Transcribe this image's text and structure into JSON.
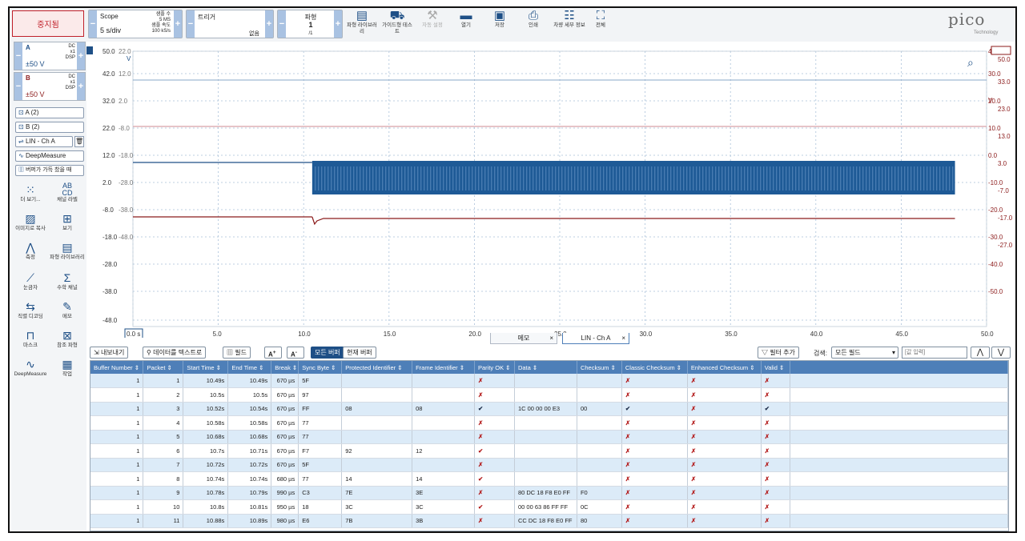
{
  "toolbar": {
    "stop": "중지됨",
    "scope_label": "Scope",
    "timebase": "5 s/div",
    "samples_label": "샘플 수",
    "samples": "5 MS",
    "rate_label": "샘플 속도",
    "rate": "100 kS/s",
    "trigger_label": "트리거",
    "trigger_value": "없음",
    "wave_label": "파형",
    "wave_num": "1",
    "wave_den": "/1",
    "icons": [
      {
        "label": "파형 라이브러리",
        "icon": "books-icon"
      },
      {
        "label": "가이드형 테스트",
        "icon": "car-icon"
      },
      {
        "label": "자동 설정",
        "icon": "wand-icon",
        "disabled": true
      },
      {
        "label": "열기",
        "icon": "folder-icon"
      },
      {
        "label": "저장",
        "icon": "save-icon"
      },
      {
        "label": "인쇄",
        "icon": "printer-icon"
      },
      {
        "label": "차량 세부 정보",
        "icon": "clipboard-icon"
      },
      {
        "label": "전체",
        "icon": "fullscreen-icon"
      }
    ],
    "logo": "pico",
    "logo_sub": "Technology"
  },
  "channels": [
    {
      "name": "A",
      "range": "±50 V",
      "coupling": "DC",
      "probe": "x1",
      "dsp": "DSP",
      "color": "#1e4f86"
    },
    {
      "name": "B",
      "range": "±50 V",
      "coupling": "DC",
      "probe": "x1",
      "dsp": "DSP",
      "color": "#8b1a1a"
    }
  ],
  "side_buttons": [
    "A (2)",
    "B (2)",
    "LIN - Ch A",
    "DeepMeasure",
    "버퍼가 가득 찼을 때"
  ],
  "tools": [
    {
      "label": "더 보기...",
      "icon": "dots-icon"
    },
    {
      "label": "채널 라벨",
      "icon": "abcd-icon"
    },
    {
      "label": "이미지로 복사",
      "icon": "image-icon"
    },
    {
      "label": "보기",
      "icon": "grid-icon"
    },
    {
      "label": "측정",
      "icon": "caliper-icon"
    },
    {
      "label": "파형 라이브러리",
      "icon": "books-icon"
    },
    {
      "label": "눈금자",
      "icon": "ruler-icon"
    },
    {
      "label": "수학 채널",
      "icon": "sigma-icon"
    },
    {
      "label": "직렬 디코딩",
      "icon": "serial-icon"
    },
    {
      "label": "메모",
      "icon": "note-icon"
    },
    {
      "label": "마스크",
      "icon": "mask-icon"
    },
    {
      "label": "참조 파형",
      "icon": "reference-icon"
    },
    {
      "label": "DeepMeasure",
      "icon": "deepmeasure-icon"
    },
    {
      "label": "작업",
      "icon": "clapper-icon"
    }
  ],
  "plot": {
    "y_left_a": [
      "50.0",
      "42.0",
      "32.0",
      "22.0",
      "12.0",
      "2.0",
      "-8.0",
      "-18.0",
      "-28.0",
      "-38.0",
      "-48.0"
    ],
    "y_left_b": [
      "22.0",
      "12.0",
      "2.0",
      "-8.0",
      "-18.0",
      "-28.0",
      "-38.0",
      "-48.0"
    ],
    "y_right_a": [
      "40.0",
      "30.0",
      "20.0",
      "10.0",
      "0.0",
      "-10.0",
      "-20.0",
      "-30.0",
      "-40.0",
      "-50.0"
    ],
    "y_right_b": [
      "50.0",
      "33.0",
      "23.0",
      "13.0",
      "3.0",
      "-7.0",
      "-17.0",
      "-27.0"
    ],
    "unit": "V",
    "x_ticks": [
      "0.0 s",
      "5.0",
      "10.0",
      "15.0",
      "20.0",
      "25.0",
      "30.0",
      "35.0",
      "40.0",
      "45.0",
      "50.0"
    ]
  },
  "tabs": [
    "메모",
    "LIN - Ch A"
  ],
  "buffer_bar": {
    "export": "내보내기",
    "to_text": "데이터를 텍스트로",
    "fields": "필드",
    "all_buffers": "모든 버퍼",
    "current_buffer": "현재 버퍼",
    "add_filter": "필터 추가",
    "search_label": "검색:",
    "search_scope": "모든 필드",
    "search_placeholder": "[값 입력]"
  },
  "table": {
    "headers": [
      "Buffer Number",
      "Packet",
      "Start Time",
      "End Time",
      "Break",
      "Sync Byte",
      "Protected Identifier",
      "Frame Identifier",
      "Parity OK",
      "Data",
      "Checksum",
      "Classic Checksum",
      "Enhanced Checksum",
      "Valid"
    ],
    "rows": [
      [
        "1",
        "1",
        "10.49s",
        "10.49s",
        "670 µs",
        "5F",
        "",
        "",
        "x",
        "",
        "",
        "x",
        "x",
        "x"
      ],
      [
        "1",
        "2",
        "10.5s",
        "10.5s",
        "670 µs",
        "97",
        "",
        "",
        "x",
        "",
        "",
        "x",
        "x",
        "x"
      ],
      [
        "1",
        "3",
        "10.52s",
        "10.54s",
        "670 µs",
        "FF",
        "08",
        "08",
        "v",
        "1C 00 00 00 E3",
        "00",
        "v",
        "x",
        "v"
      ],
      [
        "1",
        "4",
        "10.58s",
        "10.58s",
        "670 µs",
        "77",
        "",
        "",
        "x",
        "",
        "",
        "x",
        "x",
        "x"
      ],
      [
        "1",
        "5",
        "10.68s",
        "10.68s",
        "670 µs",
        "77",
        "",
        "",
        "x",
        "",
        "",
        "x",
        "x",
        "x"
      ],
      [
        "1",
        "6",
        "10.7s",
        "10.71s",
        "670 µs",
        "F7",
        "92",
        "12",
        "vr",
        "",
        "",
        "x",
        "x",
        "x"
      ],
      [
        "1",
        "7",
        "10.72s",
        "10.72s",
        "670 µs",
        "5F",
        "",
        "",
        "x",
        "",
        "",
        "x",
        "x",
        "x"
      ],
      [
        "1",
        "8",
        "10.74s",
        "10.74s",
        "680 µs",
        "77",
        "14",
        "14",
        "vr",
        "",
        "",
        "x",
        "x",
        "x"
      ],
      [
        "1",
        "9",
        "10.78s",
        "10.79s",
        "990 µs",
        "C3",
        "7E",
        "3E",
        "x",
        "80 DC 18 F8 E0 FF",
        "F0",
        "x",
        "x",
        "x"
      ],
      [
        "1",
        "10",
        "10.8s",
        "10.81s",
        "950 µs",
        "18",
        "3C",
        "3C",
        "vr",
        "00 00 63 86 FF FF",
        "0C",
        "x",
        "x",
        "x"
      ],
      [
        "1",
        "11",
        "10.88s",
        "10.89s",
        "980 µs",
        "E6",
        "7B",
        "3B",
        "x",
        "CC DC 18 F8 E0 FF",
        "80",
        "x",
        "x",
        "x"
      ]
    ]
  }
}
